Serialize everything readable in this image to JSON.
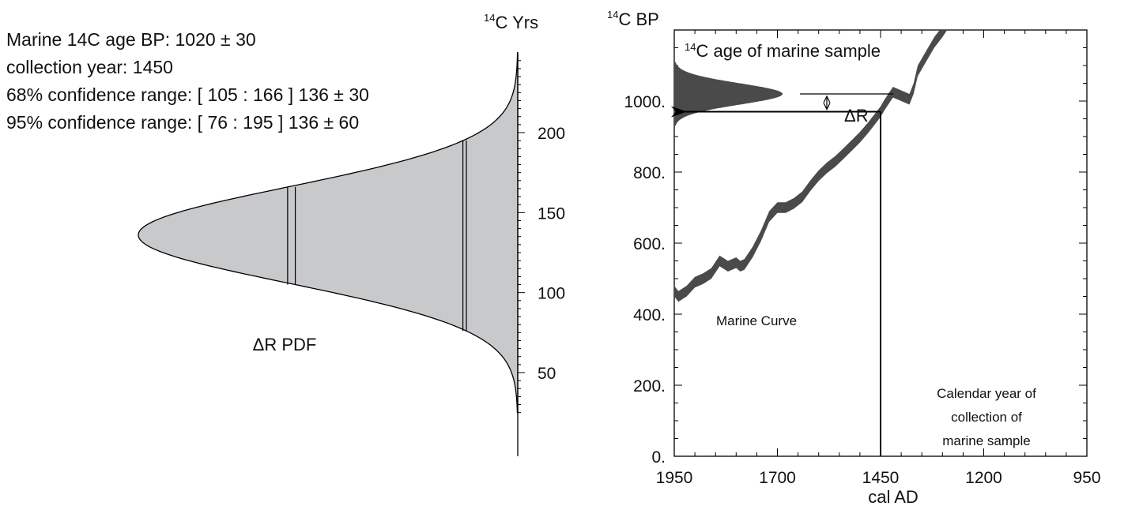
{
  "info": {
    "line1": "Marine 14C age BP: 1020 ± 30",
    "line2": "collection year: 1450",
    "line3": "68% confidence range: [ 105 : 166 ] 136 ± 30",
    "line4": "95% confidence range: [ 76 : 195 ] 136 ± 60"
  },
  "colors": {
    "pdf_fill": "#c8c9cb",
    "curve": "#4a4a4a",
    "line": "#000000"
  },
  "chart_data": [
    {
      "type": "area",
      "title": "ΔR PDF",
      "ylabel_sup": "14",
      "ylabel": "C Yrs",
      "yticks": [
        50,
        100,
        150,
        200
      ],
      "ylim": [
        25,
        250
      ],
      "distribution": {
        "mean": 136,
        "sigma": 30
      },
      "markers": [
        {
          "name": "68%",
          "range": [
            105,
            166
          ]
        },
        {
          "name": "95%",
          "range": [
            76,
            195
          ]
        }
      ]
    },
    {
      "type": "line",
      "title": "",
      "xlabel": "cal AD",
      "ylabel_sup": "14",
      "ylabel": "C BP",
      "xticks": [
        "1950",
        "1700",
        "1450",
        "1200",
        "950"
      ],
      "yticks": [
        "0.",
        "200.",
        "400.",
        "600.",
        "800.",
        "1000."
      ],
      "xlim": [
        1950,
        950
      ],
      "ylim": [
        0,
        1200
      ],
      "series": [
        {
          "name": "Marine Curve",
          "x": [
            1950,
            1940,
            1920,
            1900,
            1880,
            1860,
            1840,
            1820,
            1800,
            1790,
            1780,
            1760,
            1740,
            1720,
            1700,
            1680,
            1660,
            1640,
            1620,
            1600,
            1580,
            1560,
            1540,
            1520,
            1500,
            1480,
            1460,
            1450,
            1440,
            1420,
            1400,
            1380,
            1370,
            1360,
            1340,
            1320,
            1300,
            1280,
            1260,
            1240,
            1230
          ],
          "y": [
            465,
            450,
            465,
            490,
            500,
            515,
            550,
            535,
            545,
            535,
            540,
            575,
            620,
            675,
            700,
            700,
            712,
            730,
            762,
            790,
            812,
            830,
            852,
            875,
            898,
            925,
            955,
            970,
            990,
            1025,
            1015,
            1005,
            1035,
            1085,
            1125,
            1165,
            1195,
            1230,
            1250,
            1260,
            1265
          ],
          "band_width": 30
        }
      ],
      "sample_pdf": {
        "label_sup": "14",
        "label": "C age of marine sample",
        "mean": 1020,
        "sigma": 30
      },
      "delta_r_label": "ΔR",
      "collection_year": 1450,
      "collection_label": [
        "Calendar year of",
        "collection of",
        "marine sample"
      ],
      "annotation": "Marine Curve"
    }
  ]
}
